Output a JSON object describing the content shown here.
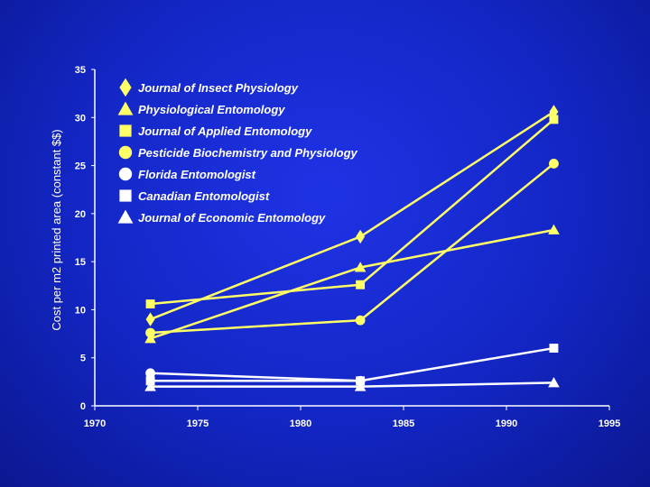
{
  "chart_data": {
    "type": "line",
    "title": "",
    "xlabel": "",
    "ylabel": "Cost per m2 printed area (constant $$)",
    "xlim": [
      1970,
      1995
    ],
    "ylim": [
      0,
      35
    ],
    "x_ticks": [
      1970,
      1975,
      1980,
      1985,
      1990,
      1995
    ],
    "y_ticks": [
      0,
      5,
      10,
      15,
      20,
      25,
      30,
      35
    ],
    "grid": false,
    "legend_position": "top-left",
    "series": [
      {
        "name": "Journal of Insect Physiology",
        "color": "#ffff66",
        "marker": "diamond",
        "x": [
          1972.7,
          1982.9,
          1992.3
        ],
        "y": [
          9.0,
          17.6,
          30.6
        ]
      },
      {
        "name": "Physiological Entomology",
        "color": "#ffff66",
        "marker": "triangle",
        "x": [
          1972.7,
          1982.9,
          1992.3
        ],
        "y": [
          7.0,
          14.4,
          18.3
        ]
      },
      {
        "name": "Journal of Applied Entomology",
        "color": "#ffff66",
        "marker": "square",
        "x": [
          1972.7,
          1982.9,
          1992.3
        ],
        "y": [
          10.6,
          12.6,
          29.8
        ]
      },
      {
        "name": "Pesticide Biochemistry and Physiology",
        "color": "#ffff66",
        "marker": "circle",
        "x": [
          1972.7,
          1982.9,
          1992.3
        ],
        "y": [
          7.6,
          8.9,
          25.2
        ]
      },
      {
        "name": "Florida Entomologist",
        "color": "#ffffff",
        "marker": "circle",
        "x": [
          1972.7,
          1982.9
        ],
        "y": [
          3.4,
          2.6
        ]
      },
      {
        "name": "Canadian Entomologist",
        "color": "#ffffff",
        "marker": "square",
        "x": [
          1972.7,
          1982.9,
          1992.3
        ],
        "y": [
          2.6,
          2.6,
          6.0
        ]
      },
      {
        "name": "Journal of Economic Entomology",
        "color": "#ffffff",
        "marker": "triangle",
        "x": [
          1972.7,
          1982.9,
          1992.3
        ],
        "y": [
          2.0,
          2.0,
          2.4
        ]
      }
    ]
  }
}
